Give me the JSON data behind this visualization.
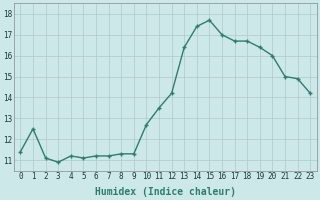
{
  "x": [
    0,
    1,
    2,
    3,
    4,
    5,
    6,
    7,
    8,
    9,
    10,
    11,
    12,
    13,
    14,
    15,
    16,
    17,
    18,
    19,
    20,
    21,
    22,
    23
  ],
  "y": [
    11.4,
    12.5,
    11.1,
    10.9,
    11.2,
    11.1,
    11.2,
    11.2,
    11.3,
    11.3,
    12.7,
    13.5,
    14.2,
    16.4,
    17.4,
    17.7,
    17.0,
    16.7,
    16.7,
    16.4,
    16.0,
    15.0,
    14.9,
    14.2
  ],
  "line_color": "#2e7d6e",
  "marker": "+",
  "marker_size": 3.5,
  "bg_color": "#cce8e8",
  "grid_color": "#b0c8c8",
  "xlabel": "Humidex (Indice chaleur)",
  "xlabel_fontsize": 7,
  "yticks": [
    11,
    12,
    13,
    14,
    15,
    16,
    17,
    18
  ],
  "xtick_labels": [
    "0",
    "1",
    "2",
    "3",
    "4",
    "5",
    "6",
    "7",
    "8",
    "9",
    "10",
    "11",
    "12",
    "13",
    "14",
    "15",
    "16",
    "17",
    "18",
    "19",
    "20",
    "21",
    "22",
    "23"
  ],
  "ylim": [
    10.5,
    18.5
  ],
  "xlim": [
    -0.5,
    23.5
  ],
  "tick_fontsize": 5.5,
  "linewidth": 1.0
}
